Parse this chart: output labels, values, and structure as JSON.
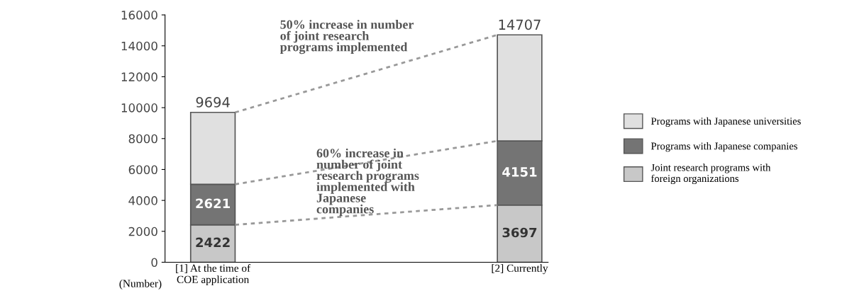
{
  "chart_data": {
    "type": "bar",
    "stacked": true,
    "categories": [
      "[1] At the time of\nCOE application",
      "[2] Currently"
    ],
    "series": [
      {
        "name": "Joint research programs with\nforeign organizations",
        "color": "#c8c8c8",
        "values": [
          2422,
          3697
        ],
        "value_labels": [
          "2422",
          "3697"
        ]
      },
      {
        "name": "Programs with Japanese companies",
        "color": "#747474",
        "values": [
          2621,
          4151
        ],
        "value_labels": [
          "2621",
          "4151"
        ]
      },
      {
        "name": "Programs with Japanese universities",
        "color": "#e0e0e0",
        "values": [
          4650,
          6860
        ],
        "value_labels": [
          null,
          null
        ]
      }
    ],
    "totals": [
      "9694",
      "14707"
    ],
    "ylim": [
      0,
      16000
    ],
    "yticks": [
      0,
      2000,
      4000,
      6000,
      8000,
      10000,
      12000,
      14000,
      16000
    ],
    "grid": false,
    "legend": "right",
    "annotations": [
      "50% increase in number\nof joint research\nprograms implemented",
      "60% increase in\nnumber of joint\nresearch programs\nimplemented with\nJapanese\ncompanies",
      "(Number)"
    ]
  }
}
